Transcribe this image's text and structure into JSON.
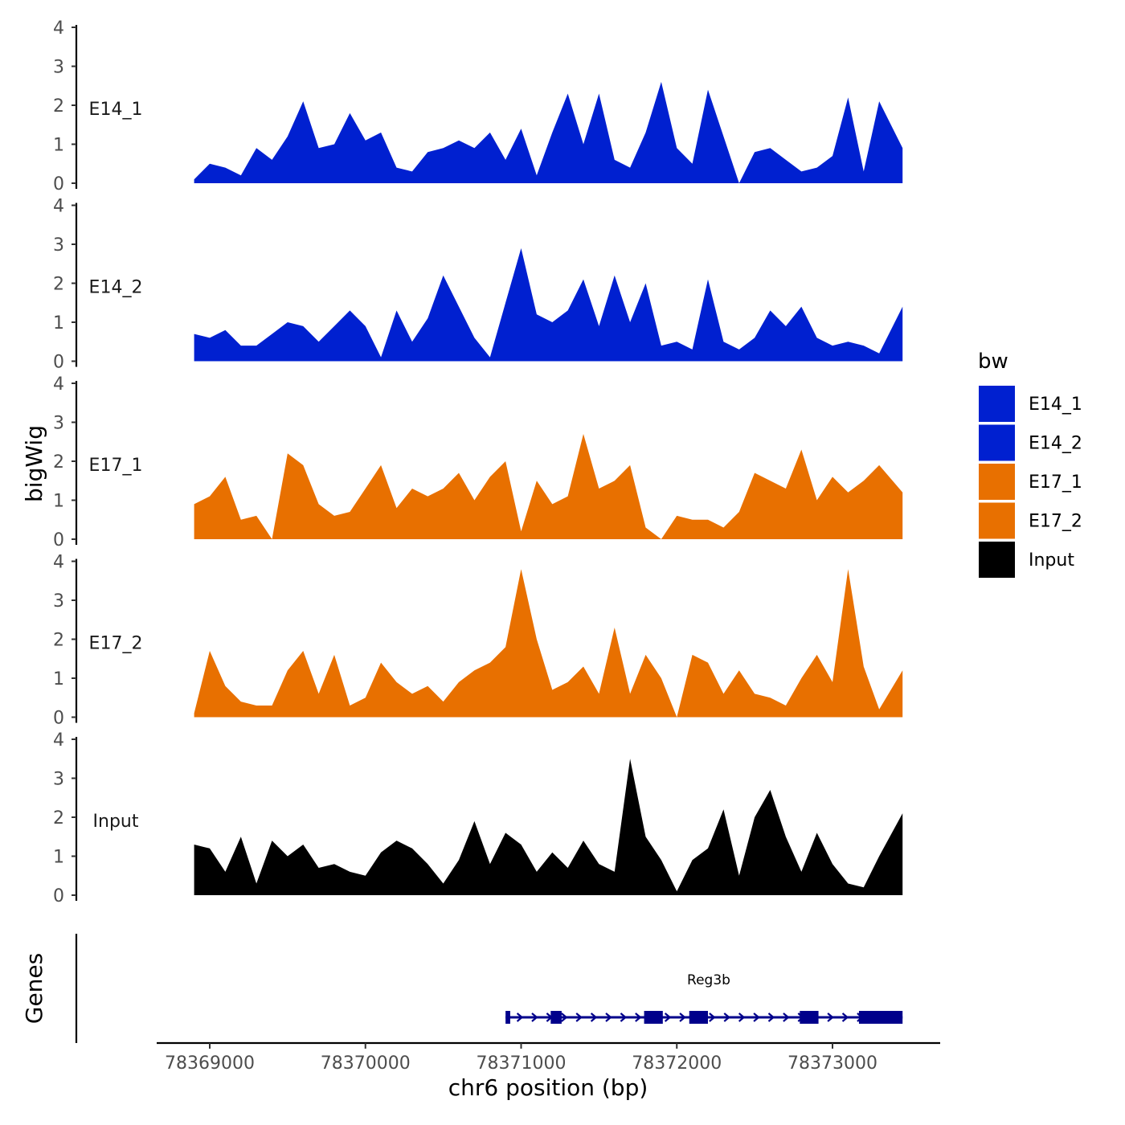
{
  "chart_data": {
    "type": "area",
    "chromosome": "chr6",
    "xlabel": "chr6 position (bp)",
    "ylabel": "bigWig",
    "genes_label": "Genes",
    "xlim": [
      78368650,
      78373650
    ],
    "xticks": [
      "78369000",
      "78370000",
      "78371000",
      "78372000",
      "78373000"
    ],
    "ylim": [
      0,
      4
    ],
    "yticks": [
      "0",
      "1",
      "2",
      "3",
      "4"
    ],
    "legend": {
      "title": "bw",
      "position": "right",
      "entries": [
        {
          "name": "E14_1",
          "color": "#0020d0"
        },
        {
          "name": "E14_2",
          "color": "#0020d0"
        },
        {
          "name": "E17_1",
          "color": "#e87000"
        },
        {
          "name": "E17_2",
          "color": "#e87000"
        },
        {
          "name": "Input",
          "color": "#000000"
        }
      ]
    },
    "x": [
      78368900,
      78369000,
      78369100,
      78369200,
      78369300,
      78369400,
      78369500,
      78369600,
      78369700,
      78369800,
      78369900,
      78370000,
      78370100,
      78370200,
      78370300,
      78370400,
      78370500,
      78370600,
      78370700,
      78370800,
      78370900,
      78371000,
      78371100,
      78371200,
      78371300,
      78371400,
      78371500,
      78371600,
      78371700,
      78371800,
      78371900,
      78372000,
      78372100,
      78372200,
      78372300,
      78372400,
      78372500,
      78372600,
      78372700,
      78372800,
      78372900,
      78373000,
      78373100,
      78373200,
      78373300,
      78373450
    ],
    "series": [
      {
        "name": "E14_1",
        "color": "#0020d0",
        "values": [
          0.1,
          0.5,
          0.4,
          0.2,
          0.9,
          0.6,
          1.2,
          2.1,
          0.9,
          1.0,
          1.8,
          1.1,
          1.3,
          0.4,
          0.3,
          0.8,
          0.9,
          1.1,
          0.9,
          1.3,
          0.6,
          1.4,
          0.2,
          1.3,
          2.3,
          1.0,
          2.3,
          0.6,
          0.4,
          1.3,
          2.6,
          0.9,
          0.5,
          2.4,
          1.2,
          0.0,
          0.8,
          0.9,
          0.6,
          0.3,
          0.4,
          0.7,
          2.2,
          0.3,
          2.1,
          0.9
        ]
      },
      {
        "name": "E14_2",
        "color": "#0020d0",
        "values": [
          0.7,
          0.6,
          0.8,
          0.4,
          0.4,
          0.7,
          1.0,
          0.9,
          0.5,
          0.9,
          1.3,
          0.9,
          0.1,
          1.3,
          0.5,
          1.1,
          2.2,
          1.4,
          0.6,
          0.1,
          1.5,
          2.9,
          1.2,
          1.0,
          1.3,
          2.1,
          0.9,
          2.2,
          1.0,
          2.0,
          0.4,
          0.5,
          0.3,
          2.1,
          0.5,
          0.3,
          0.6,
          1.3,
          0.9,
          1.4,
          0.6,
          0.4,
          0.5,
          0.4,
          0.2,
          1.4
        ]
      },
      {
        "name": "E17_1",
        "color": "#e87000",
        "values": [
          0.9,
          1.1,
          1.6,
          0.5,
          0.6,
          0.0,
          2.2,
          1.9,
          0.9,
          0.6,
          0.7,
          1.3,
          1.9,
          0.8,
          1.3,
          1.1,
          1.3,
          1.7,
          1.0,
          1.6,
          2.0,
          0.2,
          1.5,
          0.9,
          1.1,
          2.7,
          1.3,
          1.5,
          1.9,
          0.3,
          0.0,
          0.6,
          0.5,
          0.5,
          0.3,
          0.7,
          1.7,
          1.5,
          1.3,
          2.3,
          1.0,
          1.6,
          1.2,
          1.5,
          1.9,
          1.2
        ]
      },
      {
        "name": "E17_2",
        "color": "#e87000",
        "values": [
          0.1,
          1.7,
          0.8,
          0.4,
          0.3,
          0.3,
          1.2,
          1.7,
          0.6,
          1.6,
          0.3,
          0.5,
          1.4,
          0.9,
          0.6,
          0.8,
          0.4,
          0.9,
          1.2,
          1.4,
          1.8,
          3.8,
          2.0,
          0.7,
          0.9,
          1.3,
          0.6,
          2.3,
          0.6,
          1.6,
          1.0,
          0.0,
          1.6,
          1.4,
          0.6,
          1.2,
          0.6,
          0.5,
          0.3,
          1.0,
          1.6,
          0.9,
          3.8,
          1.3,
          0.2,
          1.2
        ]
      },
      {
        "name": "Input",
        "color": "#000000",
        "values": [
          1.3,
          1.2,
          0.6,
          1.5,
          0.3,
          1.4,
          1.0,
          1.3,
          0.7,
          0.8,
          0.6,
          0.5,
          1.1,
          1.4,
          1.2,
          0.8,
          0.3,
          0.9,
          1.9,
          0.8,
          1.6,
          1.3,
          0.6,
          1.1,
          0.7,
          1.4,
          0.8,
          0.6,
          3.5,
          1.5,
          0.9,
          0.1,
          0.9,
          1.2,
          2.2,
          0.5,
          2.0,
          2.7,
          1.5,
          0.6,
          1.6,
          0.8,
          0.3,
          0.2,
          1.0,
          2.1
        ]
      }
    ],
    "gene": {
      "name": "Reg3b",
      "strand": "+",
      "start": 78370900,
      "end": 78373450,
      "exons": [
        [
          78370900,
          78370930
        ],
        [
          78371190,
          78371260
        ],
        [
          78371790,
          78371910
        ],
        [
          78372080,
          78372200
        ],
        [
          78372790,
          78372910
        ],
        [
          78373170,
          78373450
        ]
      ],
      "color": "#00008b"
    }
  }
}
